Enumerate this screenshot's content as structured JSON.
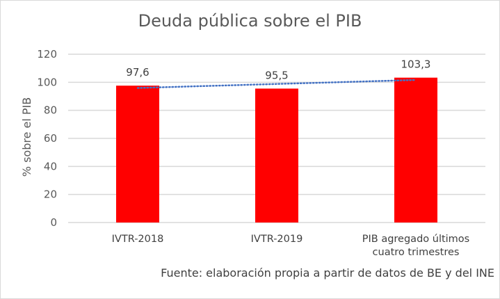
{
  "chart_data": {
    "type": "bar",
    "title": "Deuda pública sobre el PIB",
    "ylabel": "% sobre el PIB",
    "xlabel": "",
    "categories": [
      "IVTR-2018",
      "IVTR-2019",
      "PIB agregado últimos cuatro trimestres"
    ],
    "category_lines": [
      [
        "IVTR-2018"
      ],
      [
        "IVTR-2019"
      ],
      [
        "PIB agregado últimos",
        "cuatro trimestres"
      ]
    ],
    "values": [
      97.6,
      95.5,
      103.3
    ],
    "data_labels": [
      "97,6",
      "95,5",
      "103,3"
    ],
    "ylim": [
      0,
      120
    ],
    "yticks": [
      0,
      20,
      40,
      60,
      80,
      100,
      120
    ],
    "grid": true,
    "legend": "none",
    "trendline": {
      "type": "linear",
      "style": "dotted",
      "color": "#4472c4"
    },
    "bar_color": "#ff0000",
    "source": "Fuente: elaboración propia a partir de datos de BE y del INE"
  }
}
